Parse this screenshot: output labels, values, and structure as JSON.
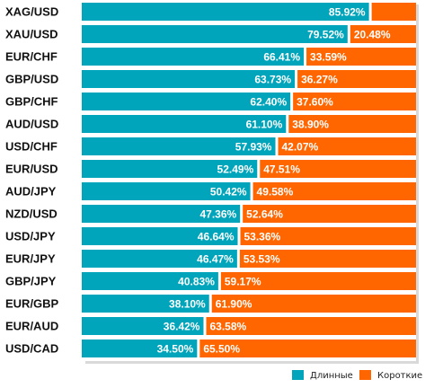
{
  "chart_data": {
    "type": "bar",
    "orientation": "horizontal",
    "stacked": true,
    "categories": [
      "XAG/USD",
      "XAU/USD",
      "EUR/CHF",
      "GBP/USD",
      "GBP/CHF",
      "AUD/USD",
      "USD/CHF",
      "EUR/USD",
      "AUD/JPY",
      "NZD/USD",
      "USD/JPY",
      "EUR/JPY",
      "GBP/JPY",
      "EUR/GBP",
      "EUR/AUD",
      "USD/CAD"
    ],
    "series": [
      {
        "name": "Длинные",
        "color": "#00a5bb",
        "values": [
          85.92,
          79.52,
          66.41,
          63.73,
          62.4,
          61.1,
          57.93,
          52.49,
          50.42,
          47.36,
          46.64,
          46.47,
          40.83,
          38.1,
          36.42,
          34.5
        ],
        "labels": [
          "85.92%",
          "79.52%",
          "66.41%",
          "63.73%",
          "62.40%",
          "61.10%",
          "57.93%",
          "52.49%",
          "50.42%",
          "47.36%",
          "46.64%",
          "46.47%",
          "40.83%",
          "38.10%",
          "36.42%",
          "34.50%"
        ]
      },
      {
        "name": "Короткие",
        "color": "#ff6600",
        "values": [
          14.08,
          20.48,
          33.59,
          36.27,
          37.6,
          38.9,
          42.07,
          47.51,
          49.58,
          52.64,
          53.36,
          53.53,
          59.17,
          61.9,
          63.58,
          65.5
        ],
        "labels": [
          "",
          "20.48%",
          "33.59%",
          "36.27%",
          "37.60%",
          "38.90%",
          "42.07%",
          "47.51%",
          "49.58%",
          "52.64%",
          "53.36%",
          "53.53%",
          "59.17%",
          "61.90%",
          "63.58%",
          "65.50%"
        ]
      }
    ],
    "xlim": [
      0,
      100
    ],
    "legend_position": "bottom-right",
    "grid": false
  }
}
